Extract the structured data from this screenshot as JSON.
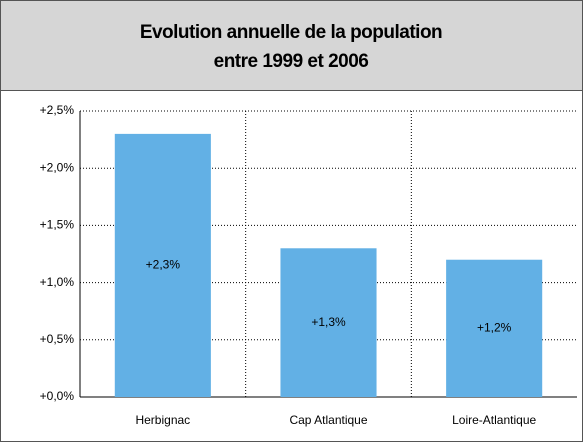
{
  "chart_data": {
    "type": "bar",
    "title": [
      "Evolution annuelle de la population",
      "entre 1999 et 2006"
    ],
    "categories": [
      "Herbignac",
      "Cap Atlantique",
      "Loire-Atlantique"
    ],
    "values": [
      2.3,
      1.3,
      1.2
    ],
    "value_labels": [
      "+2,3%",
      "+1,3%",
      "+1,2%"
    ],
    "color": "#62b0e5",
    "ylim": [
      0,
      2.5
    ],
    "yticks": [
      {
        "value": 0,
        "label": "+0,0%"
      },
      {
        "value": 0.5,
        "label": "+0,5%"
      },
      {
        "value": 1,
        "label": "+1,0%"
      },
      {
        "value": 1.5,
        "label": "+1,5%"
      },
      {
        "value": 2,
        "label": "+2,0%"
      },
      {
        "value": 2.5,
        "label": "+2,5%"
      }
    ],
    "grid": true
  }
}
